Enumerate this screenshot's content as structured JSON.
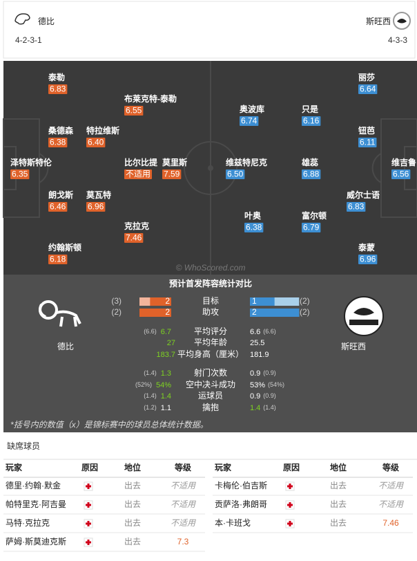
{
  "header": {
    "home": {
      "name": "德比",
      "formation": "4-2-3-1"
    },
    "away": {
      "name": "斯旺西",
      "formation": "4-3-3"
    }
  },
  "pitch": {
    "watermark": "© WhoScored.com",
    "home_players": [
      {
        "name": "泰勒",
        "rating": "6.83"
      },
      {
        "name": "布莱克特-泰勒",
        "rating": "6.55"
      },
      {
        "name": "桑德森",
        "rating": "6.38"
      },
      {
        "name": "特拉维斯",
        "rating": "6.40"
      },
      {
        "name": "泽特斯特伦",
        "rating": "6.35"
      },
      {
        "name": "比尔比提",
        "rating": "不适用"
      },
      {
        "name": "莫里斯",
        "rating": "7.59"
      },
      {
        "name": "朗戈斯",
        "rating": "6.46"
      },
      {
        "name": "莫瓦特",
        "rating": "6.96"
      },
      {
        "name": "克拉克",
        "rating": "7.46"
      },
      {
        "name": "约翰斯顿",
        "rating": "6.18"
      }
    ],
    "away_players": [
      {
        "name": "丽莎",
        "rating": "6.64"
      },
      {
        "name": "奥波库",
        "rating": "6.74"
      },
      {
        "name": "只是",
        "rating": "6.16"
      },
      {
        "name": "钮芭",
        "rating": "6.11"
      },
      {
        "name": "维兹特尼克",
        "rating": "6.50"
      },
      {
        "name": "雄蕊",
        "rating": "6.88"
      },
      {
        "name": "维吉鲁",
        "rating": "6.56"
      },
      {
        "name": "叶奥",
        "rating": "6.38"
      },
      {
        "name": "富尔顿",
        "rating": "6.79"
      },
      {
        "name": "威尔士语",
        "rating": "6.83"
      },
      {
        "name": "泰蒙",
        "rating": "6.96"
      }
    ]
  },
  "comparison": {
    "title": "预计首发阵容统计对比",
    "home_name": "德比",
    "away_name": "斯旺西",
    "bars": [
      {
        "label": "目标",
        "home": 2,
        "home_tournament": {
          "value": 3,
          "label": "(3)"
        },
        "away": 1,
        "away_tournament": {
          "value": 2,
          "label": "(2)"
        }
      },
      {
        "label": "助攻",
        "home": 2,
        "home_tournament": {
          "value": 2,
          "label": "(2)"
        },
        "away": 2,
        "away_tournament": {
          "value": 2,
          "label": "(2)"
        }
      }
    ],
    "rows": [
      {
        "label": "平均评分",
        "home": "6.7",
        "home_tournament": "(6.6)",
        "away": "6.6",
        "away_tournament": "(6.6)",
        "highlight": "home"
      },
      {
        "label": "平均年龄",
        "home": "27",
        "away": "25.5",
        "highlight": "home"
      },
      {
        "label": "平均身高（厘米）",
        "home": "183.7",
        "away": "181.9",
        "highlight": "home"
      },
      {
        "label": "射门次数",
        "home": "1.3",
        "home_tournament": "(1.4)",
        "away": "0.9",
        "away_tournament": "(0.9)",
        "highlight": "home"
      },
      {
        "label": "空中决斗成功",
        "home": "54%",
        "home_tournament": "(52%)",
        "away": "53%",
        "away_tournament": "(54%)",
        "highlight": "home"
      },
      {
        "label": "运球员",
        "home": "1.4",
        "home_tournament": "(1.4)",
        "away": "0.9",
        "away_tournament": "(0.9)",
        "highlight": "home"
      },
      {
        "label": "擒抱",
        "home": "1.1",
        "home_tournament": "(1.2)",
        "away": "1.4",
        "away_tournament": "(1.4)",
        "highlight": "away"
      }
    ],
    "footnote": "*括号内的数值（x）是锦标赛中的球员总体统计数据。"
  },
  "absent": {
    "title": "缺席球员",
    "columns": [
      "玩家",
      "原因",
      "地位",
      "等级"
    ],
    "left": [
      {
        "name": "德里·约翰·默金",
        "status": "出去",
        "rating": "不适用"
      },
      {
        "name": "帕特里克·阿吉曼",
        "status": "出去",
        "rating": "不适用"
      },
      {
        "name": "马特·克拉克",
        "status": "出去",
        "rating": "不适用"
      },
      {
        "name": "萨姆·斯莫迪克斯",
        "status": "出去",
        "rating": "7.3"
      }
    ],
    "right": [
      {
        "name": "卡梅伦·伯吉斯",
        "status": "出去",
        "rating": "不适用"
      },
      {
        "name": "贡萨洛·弗朗哥",
        "status": "出去",
        "rating": "不适用"
      },
      {
        "name": "本·卡班戈",
        "status": "出去",
        "rating": "7.46"
      }
    ]
  }
}
